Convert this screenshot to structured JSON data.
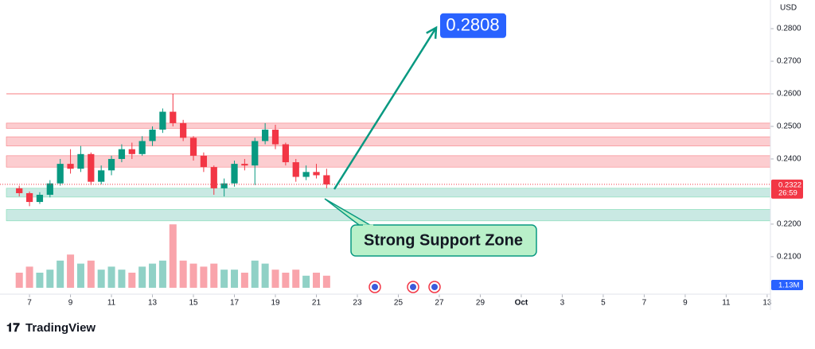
{
  "chart_data": {
    "type": "candlestick",
    "currency": "USD",
    "x": [
      6.5,
      7,
      7.5,
      8,
      8.5,
      9,
      9.5,
      10,
      10.5,
      11,
      11.5,
      12,
      12.5,
      13,
      13.5,
      14,
      14.5,
      15,
      15.5,
      16,
      16.5,
      17,
      17.5,
      18,
      18.5,
      19,
      19.5,
      20,
      20.5,
      21,
      21.5
    ],
    "open": [
      0.231,
      0.2295,
      0.2268,
      0.229,
      0.2325,
      0.2385,
      0.237,
      0.2415,
      0.233,
      0.2365,
      0.24,
      0.243,
      0.2415,
      0.2455,
      0.249,
      0.2545,
      0.251,
      0.2465,
      0.241,
      0.2375,
      0.231,
      0.2325,
      0.2385,
      0.238,
      0.2455,
      0.249,
      0.2445,
      0.239,
      0.2345,
      0.236,
      0.235
    ],
    "high": [
      0.2318,
      0.23,
      0.2298,
      0.2335,
      0.24,
      0.243,
      0.244,
      0.242,
      0.238,
      0.241,
      0.2445,
      0.245,
      0.247,
      0.25,
      0.2555,
      0.26,
      0.252,
      0.247,
      0.242,
      0.238,
      0.234,
      0.2395,
      0.24,
      0.2465,
      0.251,
      0.2505,
      0.245,
      0.24,
      0.238,
      0.2385,
      0.237
    ],
    "low": [
      0.2285,
      0.2255,
      0.2262,
      0.2282,
      0.2318,
      0.2355,
      0.236,
      0.232,
      0.2322,
      0.235,
      0.239,
      0.24,
      0.241,
      0.244,
      0.248,
      0.25,
      0.2455,
      0.2395,
      0.236,
      0.229,
      0.2285,
      0.2315,
      0.2365,
      0.232,
      0.2445,
      0.243,
      0.238,
      0.233,
      0.2335,
      0.234,
      0.231
    ],
    "close": [
      0.2295,
      0.2268,
      0.229,
      0.2325,
      0.2385,
      0.237,
      0.2415,
      0.233,
      0.2365,
      0.24,
      0.243,
      0.2415,
      0.2455,
      0.249,
      0.2545,
      0.251,
      0.2465,
      0.241,
      0.2375,
      0.231,
      0.2325,
      0.2385,
      0.238,
      0.2455,
      0.249,
      0.2445,
      0.239,
      0.2345,
      0.236,
      0.235,
      0.2322
    ],
    "volume": [
      0.5,
      0.7,
      0.5,
      0.6,
      0.9,
      1.1,
      0.8,
      0.9,
      0.6,
      0.7,
      0.6,
      0.5,
      0.7,
      0.8,
      0.9,
      2.1,
      0.9,
      0.8,
      0.7,
      0.8,
      0.6,
      0.6,
      0.5,
      0.9,
      0.8,
      0.6,
      0.5,
      0.6,
      0.4,
      0.5,
      0.4
    ],
    "volume_lim": [
      0,
      2.5
    ],
    "up_color": "#089981",
    "down_color": "#f23645",
    "xlim": [
      5.56,
      43.16
    ],
    "xticks": [
      7,
      9,
      11,
      13,
      15,
      17,
      19,
      21,
      23,
      25,
      27,
      29,
      {
        "value": 31,
        "label": "Oct"
      },
      {
        "value": 33,
        "label": "3"
      },
      {
        "value": 35,
        "label": "5"
      },
      {
        "value": 37,
        "label": "7"
      },
      {
        "value": 39,
        "label": "9"
      },
      {
        "value": 41,
        "label": "11"
      },
      {
        "value": 43,
        "label": "13"
      }
    ],
    "ylim": [
      0.1985,
      0.2888
    ],
    "yticks": [
      {
        "value": 0.28,
        "label": "0.2800"
      },
      {
        "value": 0.27,
        "label": "0.2700"
      },
      {
        "value": 0.26,
        "label": "0.2600"
      },
      {
        "value": 0.25,
        "label": "0.2500"
      },
      {
        "value": 0.24,
        "label": "0.2400"
      },
      {
        "value": 0.22,
        "label": "0.2200"
      },
      {
        "value": 0.21,
        "label": "0.2100"
      }
    ],
    "last_price": {
      "value": 0.2322,
      "label": "0.2322"
    },
    "countdown": "26:59",
    "volume_label": "1.13M",
    "resistance_line": 0.26,
    "resistance_zones": [
      [
        0.2494,
        0.251
      ],
      [
        0.244,
        0.2468
      ],
      [
        0.2375,
        0.241
      ]
    ],
    "support_zones": [
      [
        0.2283,
        0.231
      ],
      [
        0.221,
        0.2245
      ]
    ],
    "target": {
      "value": 0.2808,
      "label": "0.2808"
    },
    "support_annotation": "Strong Support Zone"
  },
  "brand": "TradingView"
}
